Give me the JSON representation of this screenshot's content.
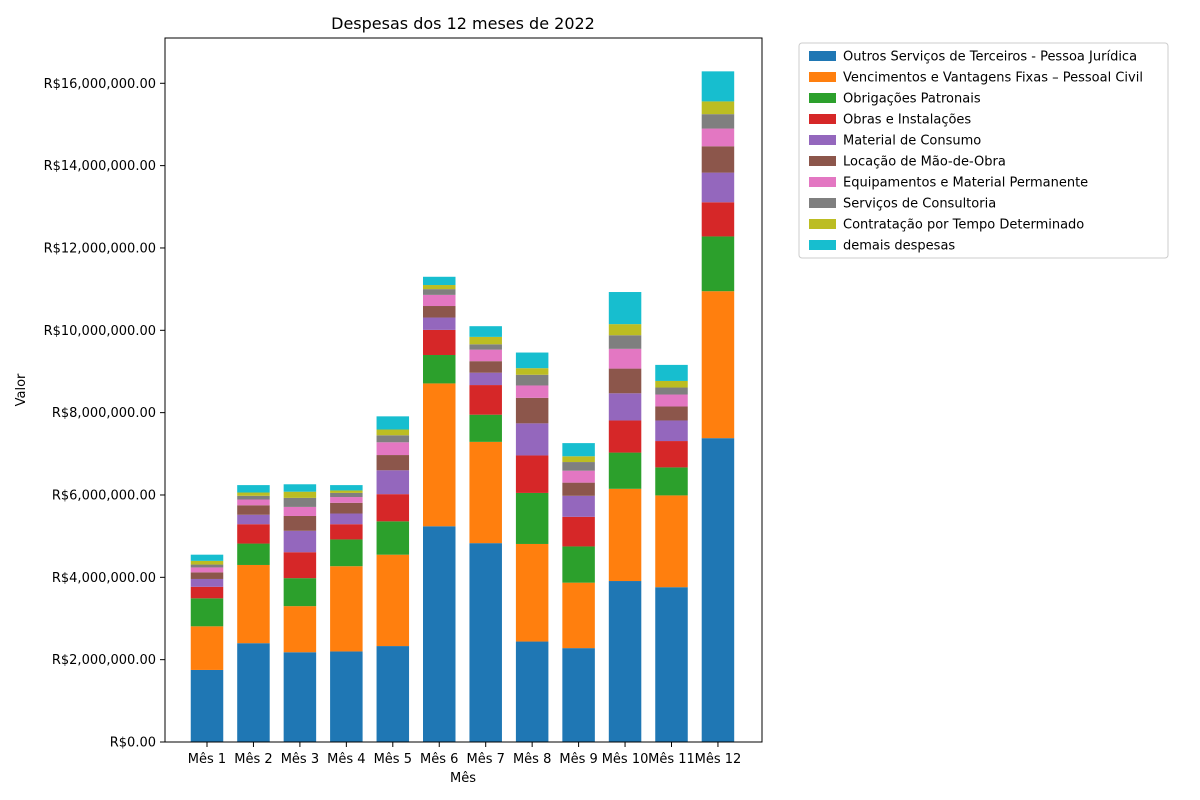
{
  "chart_data": {
    "type": "bar",
    "stacked": true,
    "title": "Despesas dos 12 meses de 2022",
    "xlabel": "Mês",
    "ylabel": "Valor",
    "ylim": [
      0,
      17100000
    ],
    "yticks": [
      0,
      2000000,
      4000000,
      6000000,
      8000000,
      10000000,
      12000000,
      14000000,
      16000000
    ],
    "ytick_labels": [
      "R$0.00",
      "R$2,000,000.00",
      "R$4,000,000.00",
      "R$6,000,000.00",
      "R$8,000,000.00",
      "R$10,000,000.00",
      "R$12,000,000.00",
      "R$14,000,000.00",
      "R$16,000,000.00"
    ],
    "categories": [
      "Mês 1",
      "Mês 2",
      "Mês 3",
      "Mês 4",
      "Mês 5",
      "Mês 6",
      "Mês 7",
      "Mês 8",
      "Mês 9",
      "Mês 10",
      "Mês 11",
      "Mês 12"
    ],
    "legend_position": "outside-top-right",
    "grid": false,
    "series": [
      {
        "name": "Outros Serviços de Terceiros - Pessoa Jurídica",
        "color": "#1f77b4",
        "values": [
          1750000,
          2400000,
          2180000,
          2200000,
          2330000,
          5240000,
          4830000,
          2440000,
          2280000,
          3910000,
          3760000,
          7380000
        ]
      },
      {
        "name": "Vencimentos e Vantagens Fixas – Pessoal Civil",
        "color": "#ff7f0e",
        "values": [
          1060000,
          1900000,
          1120000,
          2070000,
          2220000,
          3470000,
          2460000,
          2370000,
          1590000,
          2240000,
          2230000,
          3570000
        ]
      },
      {
        "name": "Obrigações Patronais",
        "color": "#2ca02c",
        "values": [
          680000,
          520000,
          680000,
          650000,
          810000,
          690000,
          660000,
          1240000,
          880000,
          880000,
          680000,
          1330000
        ]
      },
      {
        "name": "Obras e Instalações",
        "color": "#d62728",
        "values": [
          280000,
          470000,
          630000,
          370000,
          660000,
          610000,
          720000,
          910000,
          720000,
          780000,
          640000,
          830000
        ]
      },
      {
        "name": "Material de Consumo",
        "color": "#9467bd",
        "values": [
          190000,
          230000,
          520000,
          260000,
          580000,
          300000,
          300000,
          780000,
          510000,
          660000,
          500000,
          720000
        ]
      },
      {
        "name": "Locação de Mão-de-Obra",
        "color": "#8c564b",
        "values": [
          160000,
          230000,
          360000,
          260000,
          370000,
          280000,
          280000,
          620000,
          320000,
          600000,
          340000,
          640000
        ]
      },
      {
        "name": "Equipamentos e Material Permanente",
        "color": "#e377c2",
        "values": [
          120000,
          140000,
          220000,
          140000,
          310000,
          270000,
          280000,
          300000,
          290000,
          480000,
          290000,
          430000
        ]
      },
      {
        "name": "Serviços de Consultoria",
        "color": "#7f7f7f",
        "values": [
          70000,
          90000,
          220000,
          100000,
          170000,
          140000,
          130000,
          260000,
          210000,
          330000,
          170000,
          350000
        ]
      },
      {
        "name": "Contratação por Tempo Determinado",
        "color": "#bcbd22",
        "values": [
          90000,
          80000,
          150000,
          60000,
          140000,
          100000,
          180000,
          160000,
          140000,
          270000,
          160000,
          310000
        ]
      },
      {
        "name": "demais despesas",
        "color": "#17becf",
        "values": [
          150000,
          180000,
          180000,
          130000,
          320000,
          200000,
          260000,
          380000,
          320000,
          780000,
          390000,
          730000
        ]
      }
    ]
  }
}
